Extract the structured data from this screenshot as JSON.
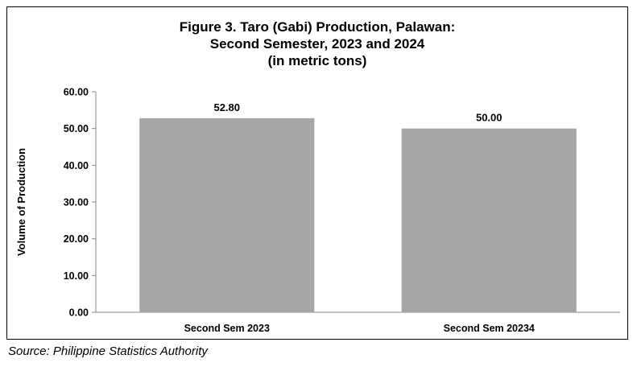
{
  "chart_data": {
    "type": "bar",
    "title_lines": [
      "Figure 3. Taro (Gabi) Production, Palawan:",
      "Second Semester, 2023 and 2024",
      "(in metric tons)"
    ],
    "categories": [
      "Second Sem 2023",
      "Second Sem 20234"
    ],
    "values": [
      52.8,
      50.0
    ],
    "data_labels": [
      "52.80",
      "50.00"
    ],
    "ylabel": "Volume of Production",
    "ylim": [
      0,
      60
    ],
    "yticks": [
      "0.00",
      "10.00",
      "20.00",
      "30.00",
      "40.00",
      "50.00",
      "60.00"
    ],
    "grid": false,
    "legend": "none",
    "bar_color": "#a6a6a6"
  },
  "source": "Source: Philippine Statistics Authority"
}
